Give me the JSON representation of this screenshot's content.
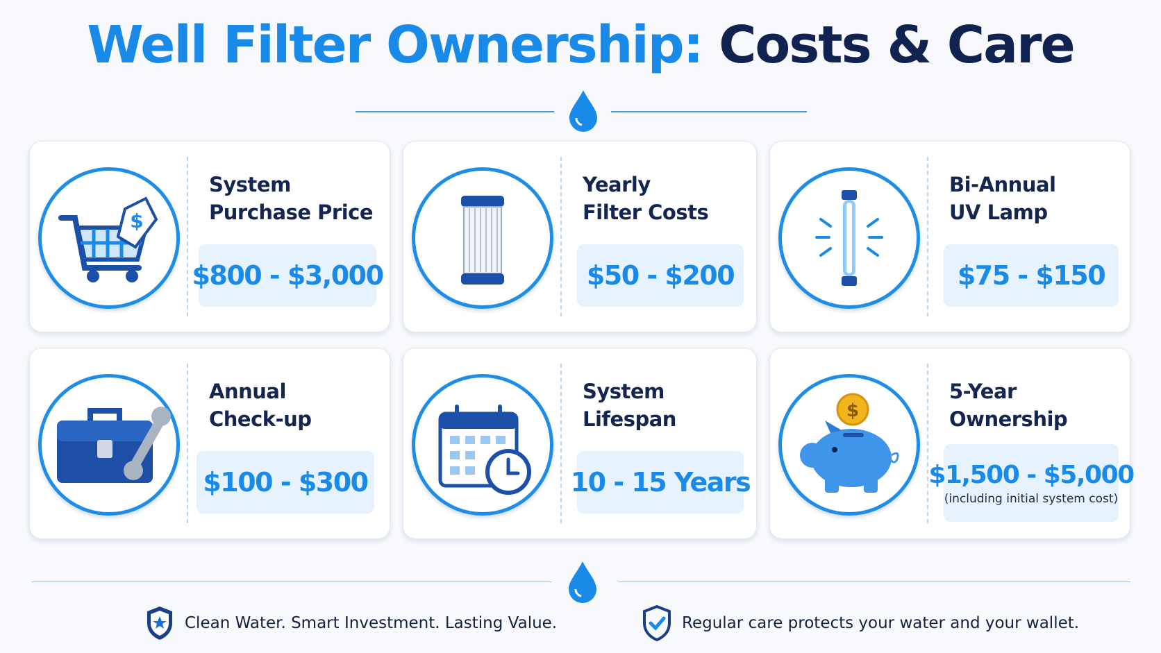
{
  "header": {
    "title_part1": "Well Filter Ownership:",
    "title_part2": "Costs & Care"
  },
  "cards": [
    {
      "label_lines": [
        "System",
        "Purchase Price"
      ],
      "value": "$800 - $3,000"
    },
    {
      "label_lines": [
        "Yearly",
        "Filter Costs"
      ],
      "value": "$50 - $200"
    },
    {
      "label_lines": [
        "Bi-Annual",
        "UV Lamp"
      ],
      "value": "$75 - $150"
    },
    {
      "label_lines": [
        "Annual",
        "Check-up"
      ],
      "value": "$100 - $300"
    },
    {
      "label_lines": [
        "System",
        "Lifespan"
      ],
      "value": "10 - 15 Years"
    },
    {
      "label_lines": [
        "5-Year",
        "Ownership"
      ],
      "value": "$1,500 - $5,000",
      "note": "(including initial system cost)"
    }
  ],
  "footer": {
    "left": "Clean Water. Smart Investment. Lasting Value.",
    "right": "Regular care protects your water and your wallet."
  }
}
